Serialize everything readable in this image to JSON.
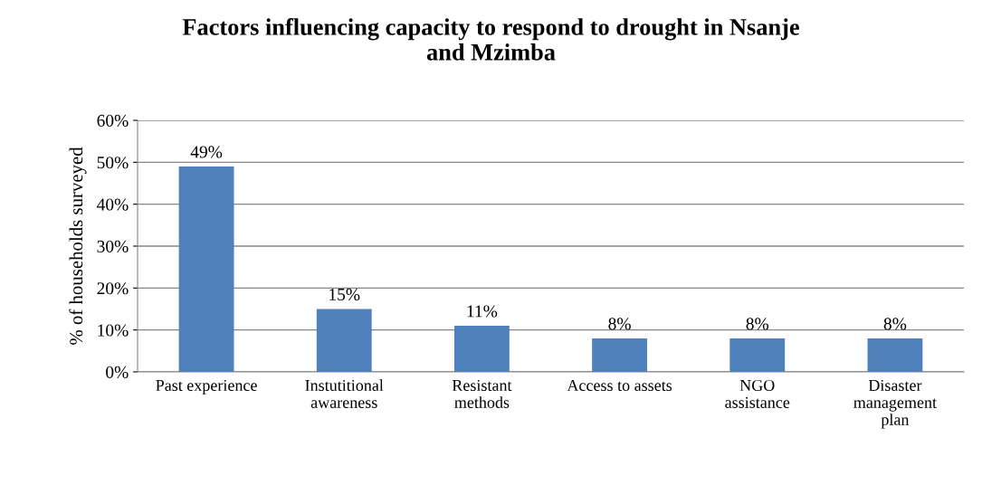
{
  "chart_data": {
    "type": "bar",
    "title": "Factors influencing capacity to respond to drought in Nsanje\nand Mzimba",
    "ylabel": "% of households surveyed",
    "categories": [
      "Past experience",
      "Instutitional\nawareness",
      "Resistant\nmethods",
      "Access to assets",
      "NGO\nassistance",
      "Disaster\nmanagement\nplan"
    ],
    "values": [
      49,
      15,
      11,
      8,
      8,
      8
    ],
    "value_labels": [
      "49%",
      "15%",
      "11%",
      "8%",
      "8%",
      "8%"
    ],
    "color": "#4f81bd",
    "ylim": [
      0,
      60
    ],
    "yticks": [
      {
        "value": 0,
        "label": "0%"
      },
      {
        "value": 10,
        "label": "10%"
      },
      {
        "value": 20,
        "label": "20%"
      },
      {
        "value": 30,
        "label": "30%"
      },
      {
        "value": 40,
        "label": "40%"
      },
      {
        "value": 50,
        "label": "50%"
      },
      {
        "value": 60,
        "label": "60%"
      }
    ],
    "grid": "y",
    "legend": false
  }
}
